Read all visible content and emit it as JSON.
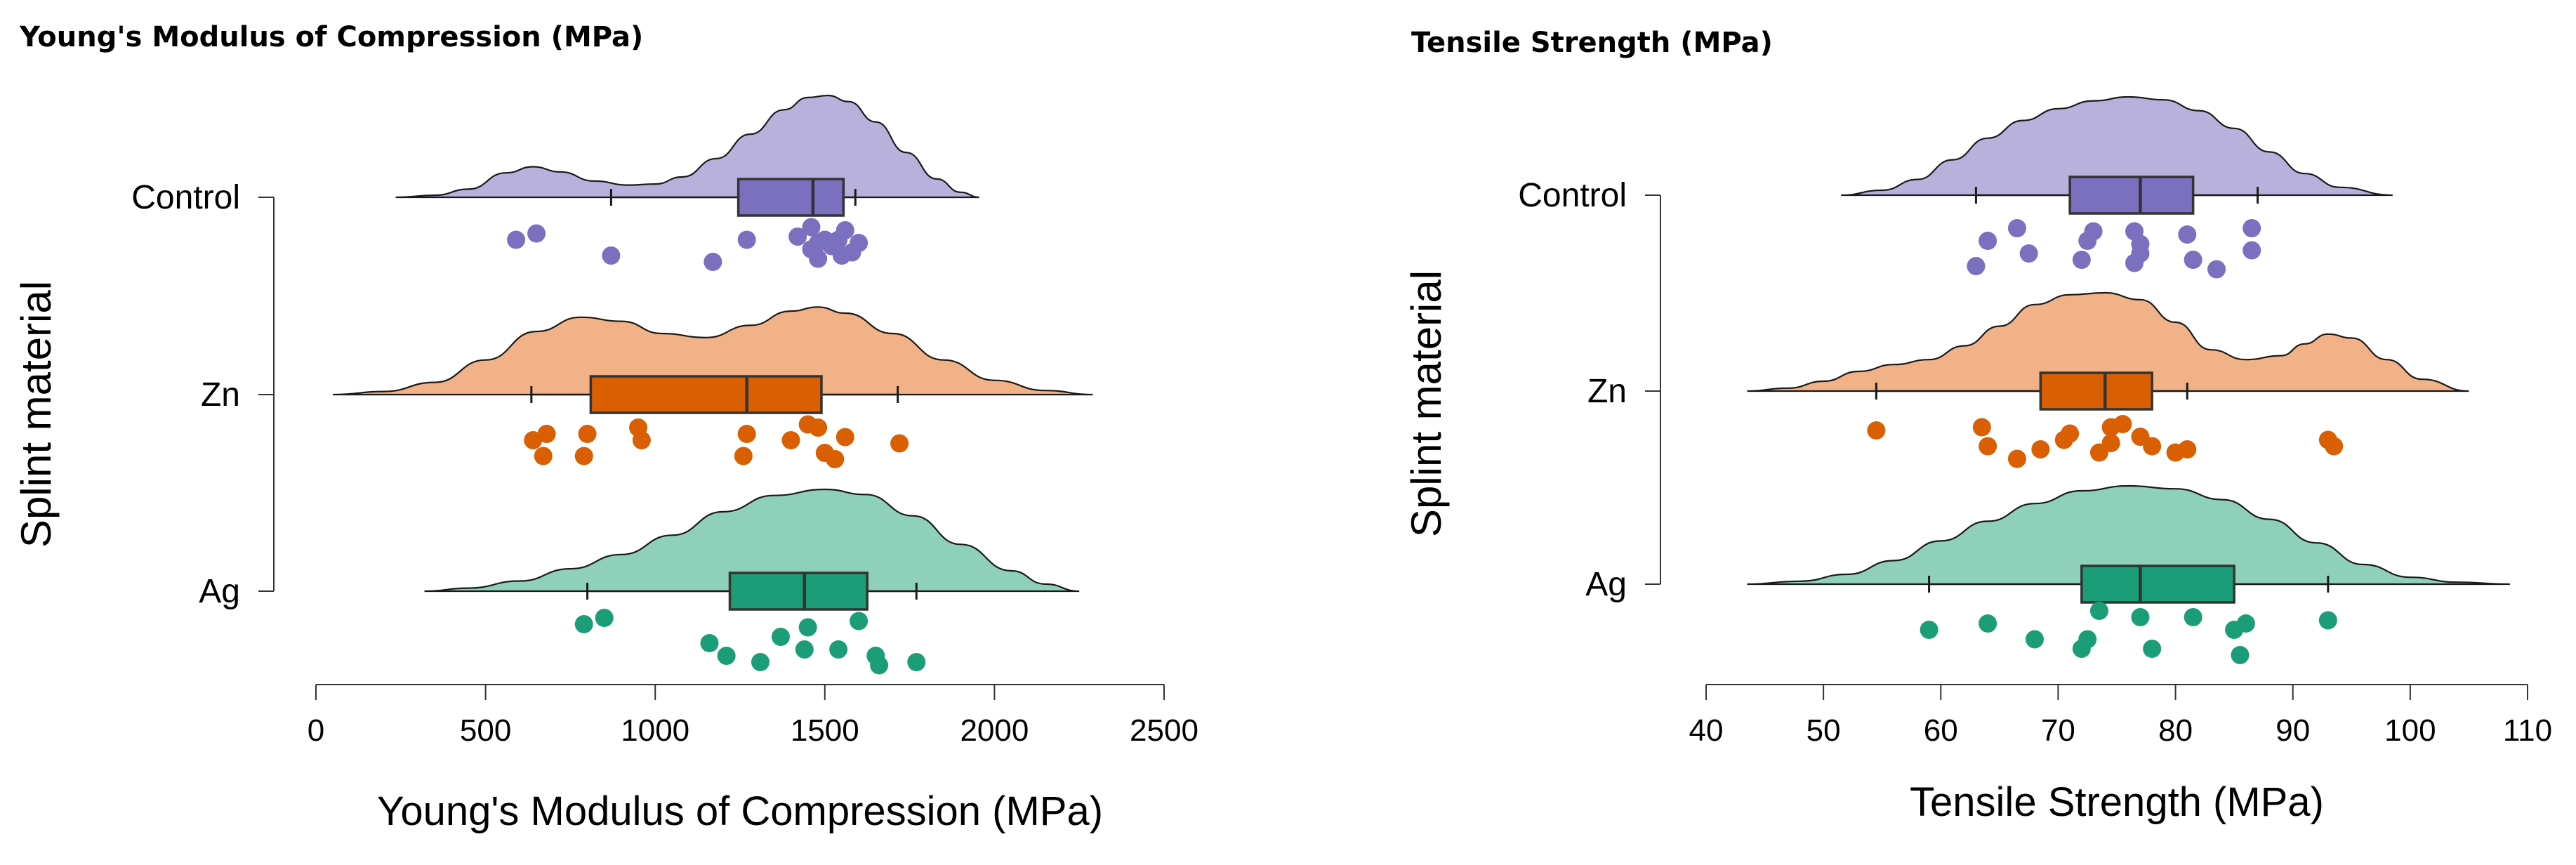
{
  "chart_data": [
    {
      "type": "raincloud",
      "title": "Young's Modulus of Compression (MPa)",
      "xlabel": "Young's Modulus of Compression (MPa)",
      "ylabel": "Splint material",
      "xlim": [
        0,
        2500
      ],
      "xticks": [
        0,
        500,
        1000,
        1500,
        2000,
        2500
      ],
      "series": [
        {
          "name": "Control",
          "color": "#7B6FBF",
          "fill": "#B7B1DC",
          "box": {
            "whisker_low": 870,
            "q1": 1245,
            "median": 1465,
            "q3": 1555,
            "whisker_high": 1590
          },
          "density_range": [
            235,
            1955
          ],
          "density": [
            [
              235,
              0.0
            ],
            [
              350,
              0.02
            ],
            [
              450,
              0.08
            ],
            [
              560,
              0.24
            ],
            [
              640,
              0.3
            ],
            [
              720,
              0.25
            ],
            [
              820,
              0.16
            ],
            [
              920,
              0.12
            ],
            [
              1000,
              0.13
            ],
            [
              1080,
              0.2
            ],
            [
              1180,
              0.38
            ],
            [
              1280,
              0.62
            ],
            [
              1380,
              0.86
            ],
            [
              1450,
              0.98
            ],
            [
              1510,
              1.0
            ],
            [
              1570,
              0.94
            ],
            [
              1650,
              0.74
            ],
            [
              1740,
              0.44
            ],
            [
              1830,
              0.18
            ],
            [
              1900,
              0.05
            ],
            [
              1955,
              0.0
            ]
          ],
          "points": [
            [
              590,
              0.25
            ],
            [
              650,
              0.15
            ],
            [
              870,
              0.5
            ],
            [
              1170,
              0.6
            ],
            [
              1270,
              0.25
            ],
            [
              1420,
              0.2
            ],
            [
              1460,
              0.05
            ],
            [
              1460,
              0.4
            ],
            [
              1480,
              0.55
            ],
            [
              1500,
              0.25
            ],
            [
              1520,
              0.35
            ],
            [
              1550,
              0.5
            ],
            [
              1560,
              0.1
            ],
            [
              1580,
              0.45
            ],
            [
              1600,
              0.3
            ],
            [
              1540,
              0.25
            ],
            [
              1480,
              0.3
            ]
          ]
        },
        {
          "name": "Zn",
          "color": "#D95F02",
          "fill": "#F0B286",
          "box": {
            "whisker_low": 635,
            "q1": 810,
            "median": 1270,
            "q3": 1490,
            "whisker_high": 1715
          },
          "density_range": [
            50,
            2290
          ],
          "density": [
            [
              50,
              0.0
            ],
            [
              200,
              0.03
            ],
            [
              350,
              0.12
            ],
            [
              500,
              0.34
            ],
            [
              650,
              0.62
            ],
            [
              780,
              0.76
            ],
            [
              900,
              0.72
            ],
            [
              1020,
              0.6
            ],
            [
              1150,
              0.56
            ],
            [
              1280,
              0.68
            ],
            [
              1400,
              0.82
            ],
            [
              1480,
              0.86
            ],
            [
              1560,
              0.8
            ],
            [
              1700,
              0.6
            ],
            [
              1850,
              0.34
            ],
            [
              2000,
              0.14
            ],
            [
              2150,
              0.04
            ],
            [
              2290,
              0.0
            ]
          ],
          "points": [
            [
              640,
              0.3
            ],
            [
              670,
              0.55
            ],
            [
              680,
              0.2
            ],
            [
              790,
              0.55
            ],
            [
              800,
              0.2
            ],
            [
              950,
              0.1
            ],
            [
              960,
              0.3
            ],
            [
              1260,
              0.55
            ],
            [
              1270,
              0.2
            ],
            [
              1400,
              0.3
            ],
            [
              1450,
              0.05
            ],
            [
              1480,
              0.1
            ],
            [
              1500,
              0.5
            ],
            [
              1530,
              0.6
            ],
            [
              1560,
              0.25
            ],
            [
              1720,
              0.35
            ]
          ]
        },
        {
          "name": "Ag",
          "color": "#1B9E77",
          "fill": "#8ED0B9",
          "box": {
            "whisker_low": 800,
            "q1": 1220,
            "median": 1440,
            "q3": 1625,
            "whisker_high": 1770
          },
          "density_range": [
            320,
            2250
          ],
          "density": [
            [
              320,
              0.0
            ],
            [
              450,
              0.03
            ],
            [
              600,
              0.1
            ],
            [
              750,
              0.22
            ],
            [
              900,
              0.36
            ],
            [
              1050,
              0.55
            ],
            [
              1200,
              0.78
            ],
            [
              1350,
              0.94
            ],
            [
              1500,
              1.0
            ],
            [
              1620,
              0.95
            ],
            [
              1760,
              0.74
            ],
            [
              1900,
              0.46
            ],
            [
              2050,
              0.2
            ],
            [
              2150,
              0.07
            ],
            [
              2250,
              0.0
            ]
          ],
          "points": [
            [
              790,
              0.1
            ],
            [
              850,
              0.0
            ],
            [
              1160,
              0.4
            ],
            [
              1210,
              0.6
            ],
            [
              1310,
              0.7
            ],
            [
              1370,
              0.3
            ],
            [
              1440,
              0.5
            ],
            [
              1450,
              0.15
            ],
            [
              1540,
              0.5
            ],
            [
              1600,
              0.05
            ],
            [
              1650,
              0.6
            ],
            [
              1660,
              0.75
            ],
            [
              1770,
              0.7
            ]
          ]
        }
      ]
    },
    {
      "type": "raincloud",
      "title": "Tensile Strength (MPa)",
      "xlabel": "Tensile Strength (MPa)",
      "ylabel": "Splint material",
      "xlim": [
        40,
        110
      ],
      "xticks": [
        40,
        50,
        60,
        70,
        80,
        90,
        100,
        110
      ],
      "series": [
        {
          "name": "Control",
          "color": "#7B6FBF",
          "fill": "#B7B1DC",
          "box": {
            "whisker_low": 63,
            "q1": 71,
            "median": 77,
            "q3": 81.5,
            "whisker_high": 87
          },
          "density_range": [
            51.5,
            98.5
          ],
          "density": [
            [
              51.5,
              0.0
            ],
            [
              55,
              0.05
            ],
            [
              58,
              0.16
            ],
            [
              61,
              0.36
            ],
            [
              64,
              0.58
            ],
            [
              67,
              0.76
            ],
            [
              70,
              0.88
            ],
            [
              73,
              0.96
            ],
            [
              76,
              1.0
            ],
            [
              79,
              0.97
            ],
            [
              82,
              0.86
            ],
            [
              85,
              0.68
            ],
            [
              88,
              0.44
            ],
            [
              91,
              0.22
            ],
            [
              94,
              0.08
            ],
            [
              98.5,
              0.0
            ]
          ],
          "points": [
            [
              63,
              0.7
            ],
            [
              64,
              0.3
            ],
            [
              66.5,
              0.1
            ],
            [
              67.5,
              0.5
            ],
            [
              72,
              0.6
            ],
            [
              72.5,
              0.3
            ],
            [
              73,
              0.15
            ],
            [
              76.5,
              0.15
            ],
            [
              77,
              0.35
            ],
            [
              77,
              0.5
            ],
            [
              76.5,
              0.65
            ],
            [
              81,
              0.2
            ],
            [
              81.5,
              0.6
            ],
            [
              83.5,
              0.75
            ],
            [
              86.5,
              0.1
            ],
            [
              86.5,
              0.45
            ]
          ]
        },
        {
          "name": "Zn",
          "color": "#D95F02",
          "fill": "#F0B286",
          "box": {
            "whisker_low": 54.5,
            "q1": 68.5,
            "median": 74,
            "q3": 78,
            "whisker_high": 81
          },
          "density_range": [
            43.5,
            105
          ],
          "density": [
            [
              43.5,
              0.0
            ],
            [
              47,
              0.03
            ],
            [
              50,
              0.1
            ],
            [
              53,
              0.2
            ],
            [
              56,
              0.27
            ],
            [
              59,
              0.32
            ],
            [
              62,
              0.46
            ],
            [
              65,
              0.66
            ],
            [
              68,
              0.88
            ],
            [
              71,
              0.98
            ],
            [
              74,
              1.0
            ],
            [
              77,
              0.93
            ],
            [
              80,
              0.7
            ],
            [
              83,
              0.42
            ],
            [
              86,
              0.32
            ],
            [
              89,
              0.36
            ],
            [
              91,
              0.48
            ],
            [
              93,
              0.58
            ],
            [
              95,
              0.54
            ],
            [
              98,
              0.32
            ],
            [
              101,
              0.12
            ],
            [
              105,
              0.0
            ]
          ],
          "points": [
            [
              54.5,
              0.2
            ],
            [
              63.5,
              0.15
            ],
            [
              64,
              0.45
            ],
            [
              66.5,
              0.65
            ],
            [
              68.5,
              0.5
            ],
            [
              70.5,
              0.35
            ],
            [
              71,
              0.25
            ],
            [
              73.5,
              0.55
            ],
            [
              74.5,
              0.15
            ],
            [
              74.5,
              0.4
            ],
            [
              75.5,
              0.1
            ],
            [
              77,
              0.3
            ],
            [
              78,
              0.45
            ],
            [
              80,
              0.55
            ],
            [
              81,
              0.5
            ],
            [
              93,
              0.35
            ],
            [
              93.5,
              0.45
            ]
          ]
        },
        {
          "name": "Ag",
          "color": "#1B9E77",
          "fill": "#8ED0B9",
          "box": {
            "whisker_low": 59,
            "q1": 72,
            "median": 77,
            "q3": 85,
            "whisker_high": 93
          },
          "density_range": [
            43.5,
            108.5
          ],
          "density": [
            [
              43.5,
              0.0
            ],
            [
              48,
              0.03
            ],
            [
              52,
              0.1
            ],
            [
              56,
              0.24
            ],
            [
              60,
              0.44
            ],
            [
              64,
              0.64
            ],
            [
              68,
              0.82
            ],
            [
              72,
              0.95
            ],
            [
              76,
              1.0
            ],
            [
              80,
              0.97
            ],
            [
              84,
              0.86
            ],
            [
              88,
              0.66
            ],
            [
              92,
              0.42
            ],
            [
              96,
              0.2
            ],
            [
              100,
              0.07
            ],
            [
              104,
              0.02
            ],
            [
              108.5,
              0.0
            ]
          ],
          "points": [
            [
              59,
              0.3
            ],
            [
              64,
              0.2
            ],
            [
              68,
              0.45
            ],
            [
              72,
              0.6
            ],
            [
              72.5,
              0.45
            ],
            [
              73.5,
              0.0
            ],
            [
              77,
              0.1
            ],
            [
              78,
              0.6
            ],
            [
              81.5,
              0.1
            ],
            [
              85,
              0.3
            ],
            [
              85.5,
              0.7
            ],
            [
              86,
              0.2
            ],
            [
              93,
              0.15
            ]
          ]
        }
      ]
    }
  ]
}
